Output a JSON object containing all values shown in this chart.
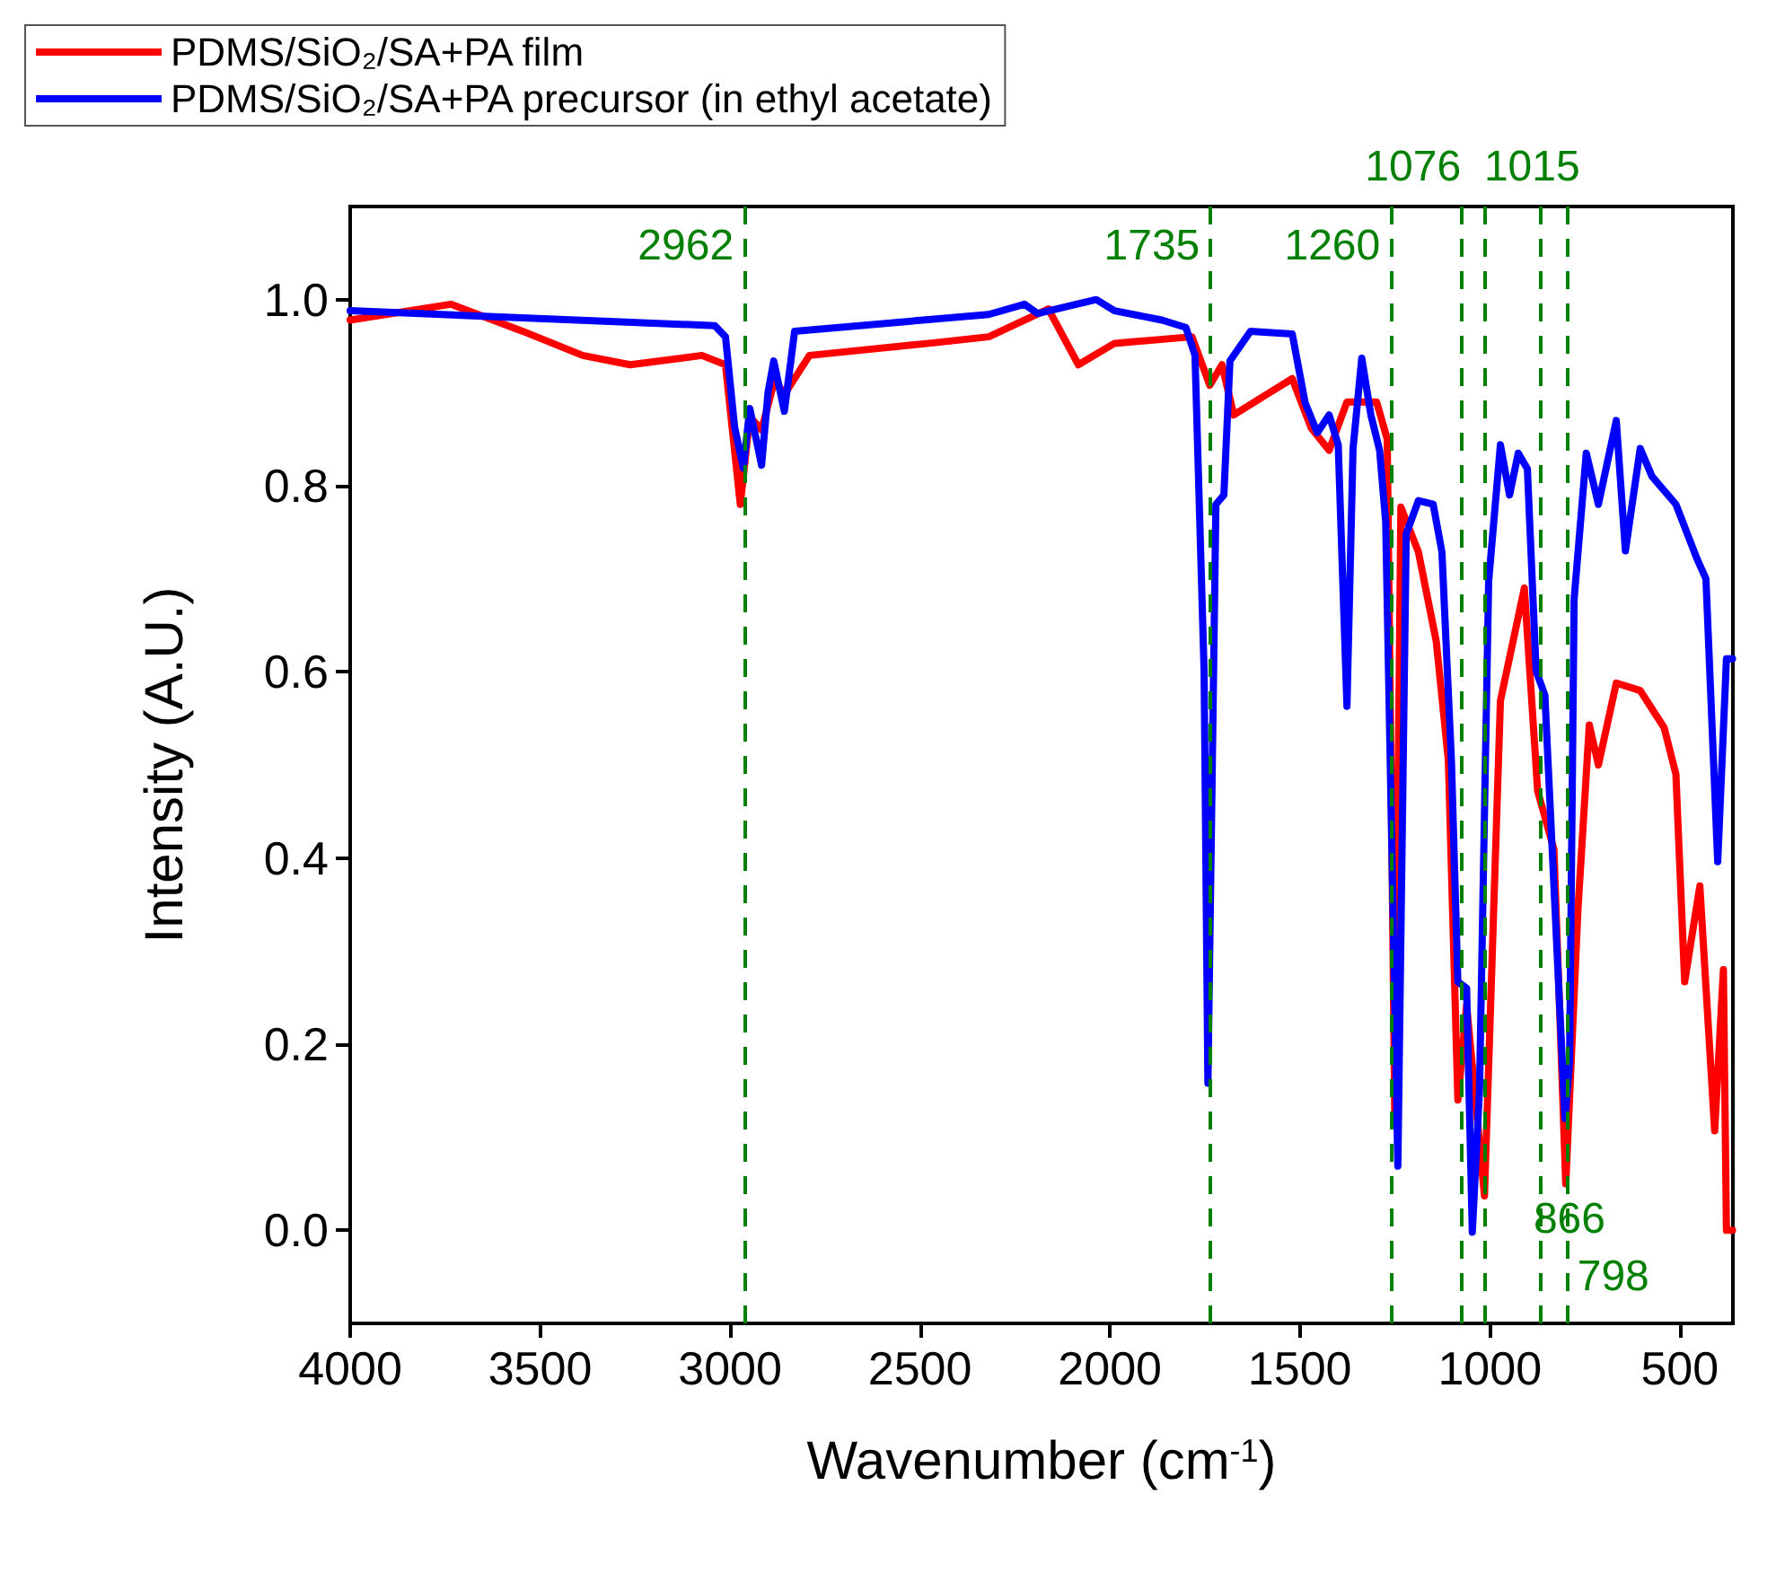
{
  "chart_data": {
    "type": "line",
    "xlabel": "Wavenumber (cm$^{-1}$)",
    "ylabel": "Intensity (A.U.)",
    "xlim": [
      4000,
      360
    ],
    "ylim": [
      -0.1,
      1.1
    ],
    "xticks": [
      4000,
      3500,
      3000,
      2500,
      2000,
      1500,
      1000,
      500
    ],
    "yticks": [
      {
        "value": 0,
        "label": "0.0"
      },
      {
        "value": 0.2,
        "label": "0.2"
      },
      {
        "value": 0.4,
        "label": "0.4"
      },
      {
        "value": 0.6,
        "label": "0.6"
      },
      {
        "value": 0.8,
        "label": "0.8"
      },
      {
        "value": 1,
        "label": "1.0"
      }
    ],
    "grid": false,
    "legend": "top left",
    "marker": "none",
    "line_style": "solid",
    "series": [
      {
        "name": "PDMS/SiO₂/SA+PA film",
        "color": "#ff0000",
        "x": [
          4000,
          3735,
          3546,
          3388,
          3263,
          3074,
          3012,
          2973,
          2948,
          2917,
          2885,
          2854,
          2791,
          2476,
          2319,
          2162,
          2083,
          1988,
          1784,
          1737,
          1705,
          1674,
          1580,
          1520,
          1470,
          1423,
          1376,
          1298,
          1270,
          1260,
          1250,
          1234,
          1188,
          1141,
          1109,
          1084,
          1061,
          1014,
          972,
          909,
          874,
          831,
          800,
          768,
          738,
          714,
          667,
          604,
          541,
          510,
          487,
          447,
          408,
          385,
          377,
          361
        ],
        "values": [
          0.978,
          0.995,
          0.966,
          0.94,
          0.93,
          0.94,
          0.93,
          0.78,
          0.874,
          0.86,
          0.91,
          0.9,
          0.94,
          0.953,
          0.96,
          0.99,
          0.93,
          0.953,
          0.96,
          0.908,
          0.93,
          0.876,
          0.9,
          0.915,
          0.862,
          0.838,
          0.89,
          0.89,
          0.85,
          0.5,
          0.12,
          0.777,
          0.729,
          0.633,
          0.505,
          0.14,
          0.242,
          0.037,
          0.569,
          0.69,
          0.472,
          0.409,
          0.05,
          0.344,
          0.543,
          0.5,
          0.588,
          0.58,
          0.54,
          0.49,
          0.267,
          0.37,
          0.107,
          0.28,
          0.0,
          0.0
        ]
      },
      {
        "name": "PDMS/SiO₂/SA+PA precursor (in ethyl acetate)",
        "color": "#0000ff",
        "x": [
          4000,
          3040,
          3012,
          2988,
          2965,
          2948,
          2917,
          2900,
          2885,
          2857,
          2830,
          2319,
          2225,
          2190,
          2036,
          1988,
          1863,
          1800,
          1776,
          1752,
          1742,
          1721,
          1700,
          1684,
          1630,
          1520,
          1486,
          1454,
          1423,
          1399,
          1376,
          1360,
          1337,
          1313,
          1290,
          1274,
          1242,
          1220,
          1188,
          1149,
          1126,
          1101,
          1084,
          1061,
          1046,
          1027,
          1003,
          972,
          948,
          925,
          901,
          878,
          855,
          802,
          790,
          778,
          746,
          714,
          667,
          643,
          604,
          573,
          510,
          455,
          431,
          400,
          377,
          361
        ],
        "values": [
          0.988,
          0.972,
          0.96,
          0.863,
          0.819,
          0.883,
          0.822,
          0.9,
          0.934,
          0.88,
          0.966,
          0.984,
          0.995,
          0.985,
          1.0,
          0.988,
          0.978,
          0.97,
          0.94,
          0.6,
          0.158,
          0.78,
          0.79,
          0.934,
          0.966,
          0.963,
          0.889,
          0.857,
          0.876,
          0.844,
          0.563,
          0.84,
          0.937,
          0.876,
          0.838,
          0.761,
          0.069,
          0.748,
          0.784,
          0.78,
          0.729,
          0.505,
          0.267,
          0.26,
          -0.002,
          0.152,
          0.697,
          0.844,
          0.79,
          0.835,
          0.818,
          0.601,
          0.575,
          0.12,
          0.18,
          0.678,
          0.835,
          0.78,
          0.87,
          0.73,
          0.84,
          0.81,
          0.78,
          0.722,
          0.7,
          0.396,
          0.614,
          0.614
        ]
      }
    ],
    "ref_lines": [
      {
        "axis": "x",
        "value": 2962,
        "label": "2962",
        "color": "#008000",
        "line_style": "dashed"
      },
      {
        "axis": "x",
        "value": 1735,
        "label": "1735",
        "color": "#008000",
        "line_style": "dashed"
      },
      {
        "axis": "x",
        "value": 1260,
        "label": "1260",
        "color": "#008000",
        "line_style": "dashed"
      },
      {
        "axis": "x",
        "value": 1076,
        "label": "1076",
        "color": "#008000",
        "line_style": "dashed"
      },
      {
        "axis": "x",
        "value": 1015,
        "label": "1015",
        "color": "#008000",
        "line_style": "dashed"
      },
      {
        "axis": "x",
        "value": 866,
        "label": "866",
        "color": "#008000",
        "line_style": "dashed"
      },
      {
        "axis": "x",
        "value": 798,
        "label": "798",
        "color": "#008000",
        "line_style": "dashed"
      }
    ]
  }
}
